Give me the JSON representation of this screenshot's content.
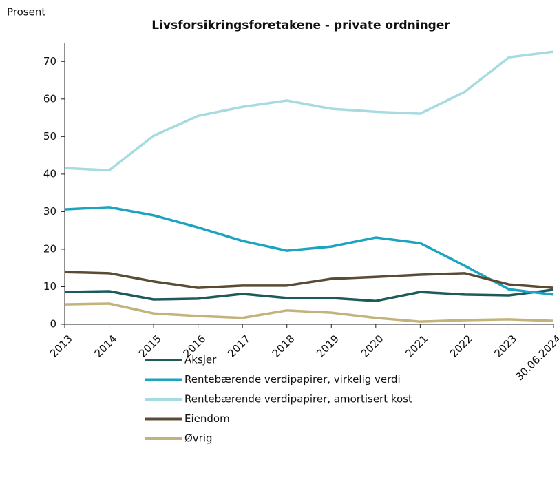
{
  "chart_data": {
    "type": "line",
    "title": "Livsforsikringsforetakene - private ordninger",
    "y_label": "Prosent",
    "categories": [
      "2013",
      "2014",
      "2015",
      "2016",
      "2017",
      "2018",
      "2019",
      "2020",
      "2021",
      "2022",
      "2023",
      "30.06.2024"
    ],
    "series": [
      {
        "name": "Aksjer",
        "color": "#1f5a5a",
        "values": [
          8.6,
          8.8,
          6.6,
          6.8,
          8.1,
          7.0,
          7.0,
          6.2,
          8.6,
          7.9,
          7.7,
          9.2
        ]
      },
      {
        "name": "Rentebærende verdipapirer, virkelig verdi",
        "color": "#1ba3c0",
        "values": [
          30.6,
          31.2,
          29.0,
          25.8,
          22.2,
          19.6,
          20.7,
          23.1,
          21.6,
          15.6,
          9.3,
          7.9
        ]
      },
      {
        "name": "Rentebærende verdipapirer, amortisert kost",
        "color": "#a6dbe0",
        "values": [
          41.6,
          41.0,
          50.2,
          55.5,
          57.9,
          59.6,
          57.4,
          56.6,
          56.1,
          61.9,
          71.1,
          72.6
        ]
      },
      {
        "name": "Eiendom",
        "color": "#5b4b35",
        "values": [
          13.9,
          13.6,
          11.4,
          9.7,
          10.3,
          10.3,
          12.1,
          12.6,
          13.2,
          13.6,
          10.6,
          9.7
        ]
      },
      {
        "name": "Øvrig",
        "color": "#c2b27b",
        "values": [
          5.3,
          5.5,
          2.9,
          2.2,
          1.7,
          3.7,
          3.1,
          1.7,
          0.7,
          1.1,
          1.3,
          0.9
        ]
      }
    ],
    "ylim": [
      0,
      75
    ],
    "yticks": [
      0,
      10,
      20,
      30,
      40,
      50,
      60,
      70
    ],
    "grid": false,
    "legend": "bottom"
  }
}
